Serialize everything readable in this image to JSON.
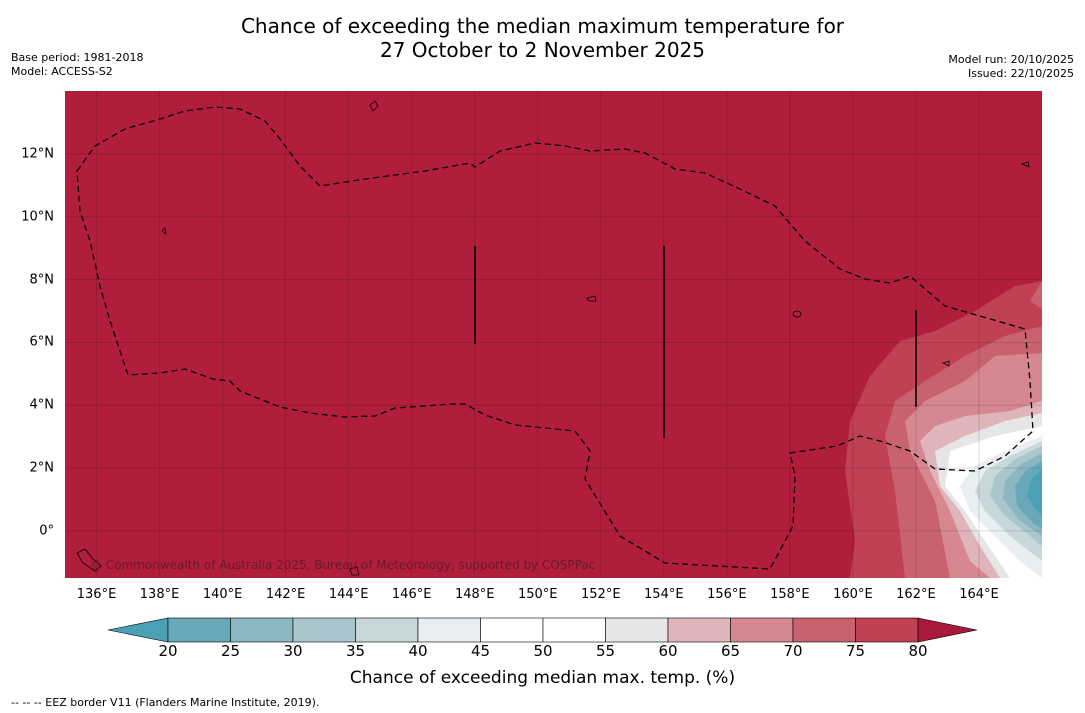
{
  "title": {
    "line1": "Chance of exceeding the median maximum temperature for",
    "line2": "27 October to 2 November 2025"
  },
  "meta_left": {
    "base_period": "Base period: 1981-2018",
    "model": "Model: ACCESS-S2"
  },
  "meta_right": {
    "model_run": "Model run: 20/10/2025",
    "issued": "Issued: 22/10/2025"
  },
  "map": {
    "base_color": "#b11e3b",
    "lat_labels": [
      "12°N",
      "10°N",
      "8°N",
      "6°N",
      "4°N",
      "2°N",
      "0°"
    ],
    "lat_values": [
      12,
      10,
      8,
      6,
      4,
      2,
      0
    ],
    "lon_labels": [
      "136°E",
      "138°E",
      "140°E",
      "142°E",
      "144°E",
      "146°E",
      "148°E",
      "150°E",
      "152°E",
      "154°E",
      "156°E",
      "158°E",
      "160°E",
      "162°E",
      "164°E"
    ],
    "lon_values": [
      136,
      138,
      140,
      142,
      144,
      146,
      148,
      150,
      152,
      154,
      156,
      158,
      160,
      162,
      164
    ],
    "lon_range": [
      135,
      166
    ],
    "lat_range": [
      -1.5,
      14
    ],
    "credit": "© Commonwealth of Australia 2025, Bureau of Meteorology, supported by COSPPac"
  },
  "colorbar": {
    "ticks": [
      "20",
      "25",
      "30",
      "35",
      "40",
      "45",
      "50",
      "55",
      "60",
      "65",
      "70",
      "75",
      "80"
    ],
    "colors": [
      "#68a9b9",
      "#8bb7c2",
      "#a8c6cc",
      "#c8d8da",
      "#e9eef0",
      "#ffffff",
      "#ffffff",
      "#e6e6e6",
      "#dfb4bb",
      "#d68790",
      "#c9626f",
      "#bf4153"
    ],
    "under_color": "#4aa0b5",
    "over_color": "#a8193a",
    "label": "Chance of exceeding median max. temp. (%)"
  },
  "footnote": "-- -- -- EEZ border V11 (Flanders Marine Institute, 2019)."
}
